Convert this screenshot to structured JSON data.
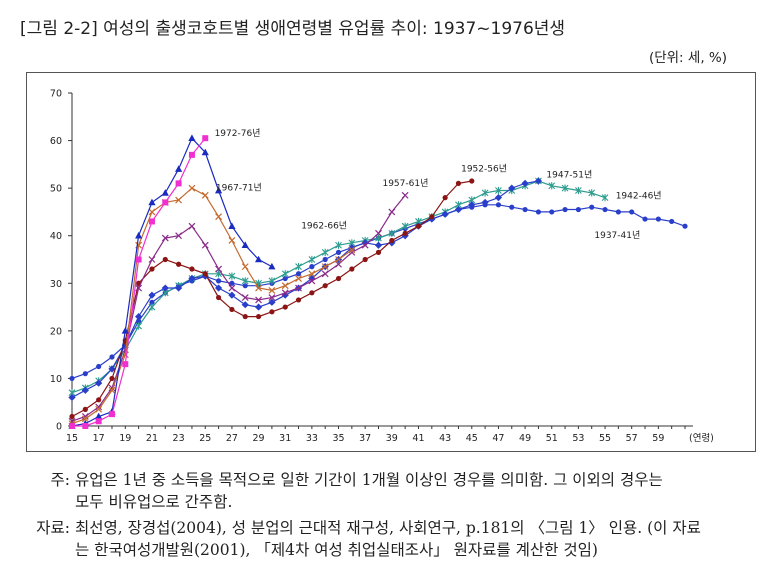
{
  "title": "[그림 2-2] 여성의 출생코호트별 생애연령별 유업률 추이: 1937~1976년생",
  "unit": "(단위: 세, %)",
  "notes": {
    "note_label": "주:",
    "note_line1": "유업은 1년 중 소득을 목적으로 일한 기간이 1개월 이상인 경우를 의미함. 그 이외의 경우는",
    "note_line2": "모두 비유업으로 간주함.",
    "source_label": "자료:",
    "source_line1": "최선영, 장경섭(2004), 성 분업의 근대적 재구성, 사회연구, p.181의 〈그림 1〉 인용. (이 자료",
    "source_line2": "는 한국여성개발원(2001), 「제4차 여성 취업실태조사」 원자료를 계산한 것임)"
  },
  "chart_data": {
    "type": "line",
    "title": "",
    "xlabel": "(연령)",
    "ylabel": "",
    "xlim": [
      15,
      61
    ],
    "ylim": [
      0,
      70
    ],
    "xticks": [
      15,
      17,
      19,
      21,
      23,
      25,
      27,
      29,
      31,
      33,
      35,
      37,
      39,
      41,
      43,
      45,
      47,
      49,
      51,
      53,
      55,
      57,
      59
    ],
    "yticks": [
      0,
      10,
      20,
      30,
      40,
      50,
      60,
      70
    ],
    "grid": false,
    "series": [
      {
        "name": "1937-41년",
        "color": "#2a3fc9",
        "marker": "dot",
        "x": [
          15,
          16,
          17,
          18,
          19,
          20,
          21,
          22,
          23,
          24,
          25,
          26,
          27,
          28,
          29,
          30,
          31,
          32,
          33,
          34,
          35,
          36,
          37,
          38,
          39,
          40,
          41,
          42,
          43,
          44,
          45,
          46,
          47,
          48,
          49,
          50,
          51,
          52,
          53,
          54,
          55,
          56,
          57,
          58,
          59,
          60,
          61
        ],
        "y": [
          10,
          11,
          12.5,
          14.5,
          17,
          22,
          26,
          28,
          29.5,
          30.5,
          31.5,
          30.5,
          30,
          29.5,
          29.5,
          30,
          31,
          32,
          33.5,
          35,
          36.5,
          37.5,
          38.5,
          39.5,
          40.5,
          41.5,
          42.5,
          43.5,
          44.5,
          45.5,
          46,
          46.5,
          46.5,
          46,
          45.5,
          45,
          45,
          45.5,
          45.5,
          46,
          45.5,
          45,
          45,
          43.5,
          43.5,
          43,
          42
        ]
      },
      {
        "name": "1942-46년",
        "color": "#2e9c8e",
        "marker": "star",
        "x": [
          15,
          16,
          17,
          18,
          19,
          20,
          21,
          22,
          23,
          24,
          25,
          26,
          27,
          28,
          29,
          30,
          31,
          32,
          33,
          34,
          35,
          36,
          37,
          38,
          39,
          40,
          41,
          42,
          43,
          44,
          45,
          46,
          47,
          48,
          49,
          50,
          51,
          52,
          53,
          54,
          55
        ],
        "y": [
          7,
          8,
          9.5,
          12,
          16,
          21,
          25,
          28,
          29.5,
          31,
          32,
          32,
          31.5,
          30.5,
          30,
          30.5,
          32,
          33.5,
          35,
          36.5,
          38,
          38.5,
          39,
          39.5,
          40.5,
          42,
          43,
          44,
          45,
          46.5,
          47.5,
          49,
          49.5,
          49.5,
          50.5,
          51.5,
          50.5,
          50,
          49.5,
          49,
          48
        ]
      },
      {
        "name": "1947-51년",
        "color": "#2a3fc9",
        "marker": "diamond",
        "x": [
          15,
          16,
          17,
          18,
          19,
          20,
          21,
          22,
          23,
          24,
          25,
          26,
          27,
          28,
          29,
          30,
          31,
          32,
          33,
          34,
          35,
          36,
          37,
          38,
          39,
          40,
          41,
          42,
          43,
          44,
          45,
          46,
          47,
          48,
          49,
          50
        ],
        "y": [
          6,
          7.5,
          9,
          12,
          17,
          23,
          27.5,
          29,
          29,
          31,
          31.5,
          29,
          27.5,
          25.5,
          25,
          26,
          27.5,
          29,
          31,
          33.5,
          35,
          37.5,
          38.5,
          38,
          38.5,
          40,
          42,
          43.5,
          44.5,
          45.5,
          46.5,
          47,
          48,
          50,
          51,
          51.5
        ]
      },
      {
        "name": "1952-56년",
        "color": "#8b1414",
        "marker": "dot",
        "x": [
          15,
          16,
          17,
          18,
          19,
          20,
          21,
          22,
          23,
          24,
          25,
          26,
          27,
          28,
          29,
          30,
          31,
          32,
          33,
          34,
          35,
          36,
          37,
          38,
          39,
          40,
          41,
          42,
          43,
          44,
          45
        ],
        "y": [
          2,
          3.5,
          5.5,
          10,
          18,
          30,
          33,
          35,
          34,
          33,
          32,
          27,
          24.5,
          23,
          23,
          24,
          25,
          26.5,
          28,
          29.5,
          31,
          33,
          35,
          36.5,
          39,
          40.5,
          42,
          44,
          48,
          51,
          51.5
        ]
      },
      {
        "name": "1957-61년",
        "color": "#8a2b8a",
        "marker": "x",
        "x": [
          15,
          16,
          17,
          18,
          19,
          20,
          21,
          22,
          23,
          24,
          25,
          26,
          27,
          28,
          29,
          30,
          31,
          32,
          33,
          34,
          35,
          36,
          37,
          38,
          39,
          40
        ],
        "y": [
          1,
          2,
          4,
          8,
          16,
          29,
          35,
          39.5,
          40,
          42,
          38,
          33,
          29,
          27,
          26.5,
          27,
          28,
          29,
          30.5,
          32,
          34,
          36.5,
          38,
          40.5,
          45,
          48.5
        ]
      },
      {
        "name": "1962-66년",
        "color": "#c46a2e",
        "marker": "x",
        "x": [
          15,
          16,
          17,
          18,
          19,
          20,
          21,
          22,
          23,
          24,
          25,
          26,
          27,
          28,
          29,
          30,
          31,
          32,
          33,
          34,
          35,
          36
        ],
        "y": [
          0.5,
          1.5,
          3.5,
          7.5,
          15,
          38,
          45,
          47,
          47.5,
          50,
          48.5,
          44,
          39,
          33.5,
          29,
          28.5,
          29.5,
          31,
          32,
          33.5,
          35,
          37
        ]
      },
      {
        "name": "1967-71년",
        "color": "#1a2bbf",
        "marker": "triangle",
        "x": [
          15,
          16,
          17,
          18,
          19,
          20,
          21,
          22,
          23,
          24,
          25,
          26,
          27,
          28,
          29,
          30
        ],
        "y": [
          0,
          0.5,
          2,
          3,
          20,
          40,
          47,
          49,
          54,
          60.5,
          57.5,
          49.5,
          42,
          38,
          35,
          33.5
        ]
      },
      {
        "name": "1972-76년",
        "color": "#f02fd0",
        "marker": "square",
        "x": [
          15,
          16,
          17,
          18,
          19,
          20,
          21,
          22,
          23,
          24,
          25
        ],
        "y": [
          0,
          0,
          1,
          2.5,
          13,
          35,
          43,
          47,
          51,
          57,
          60.5
        ]
      }
    ]
  }
}
